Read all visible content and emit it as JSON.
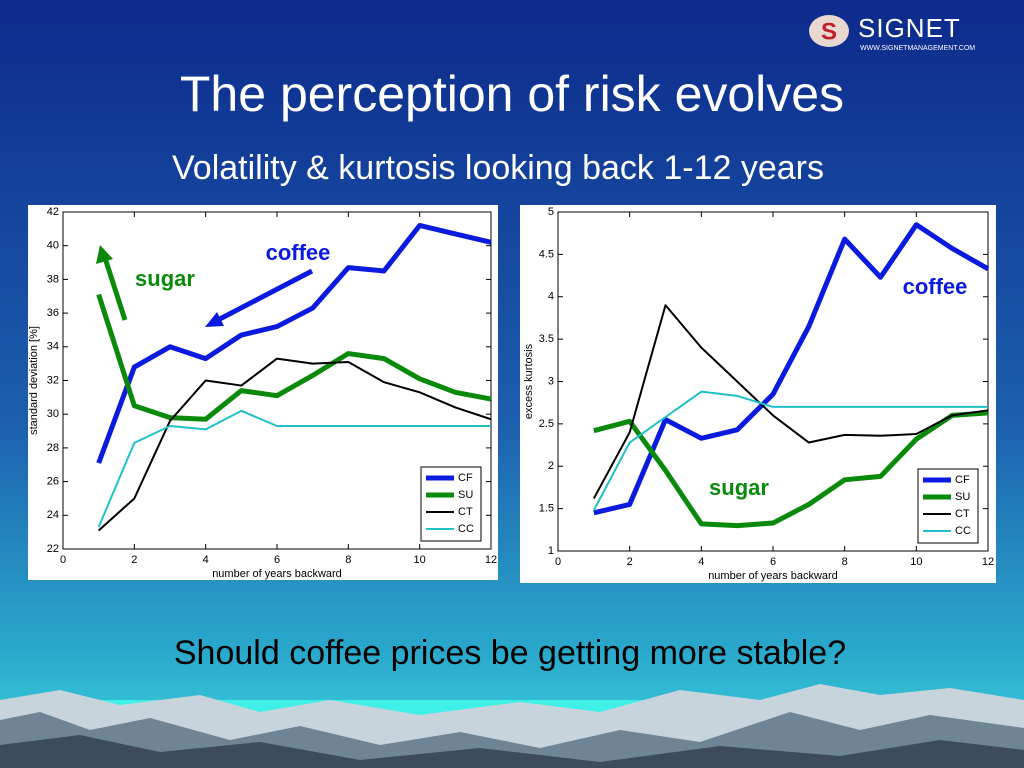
{
  "title": "The perception of risk evolves",
  "subtitle": "Volatility & kurtosis looking back 1-12 years",
  "question": "Should coffee prices be getting more stable?",
  "logo": {
    "name": "SIGNET",
    "url": "WWW.SIGNETMANAGEMENT.COM"
  },
  "chart_data": [
    {
      "type": "line",
      "ylabel": "standard deviation [%]",
      "xlabel": "number of years backward",
      "x": [
        1,
        2,
        3,
        4,
        5,
        6,
        7,
        8,
        9,
        10,
        11,
        12
      ],
      "xlim": [
        0,
        12
      ],
      "xticks": [
        0,
        2,
        4,
        6,
        8,
        10,
        12
      ],
      "ylim": [
        22,
        42
      ],
      "yticks": [
        22,
        24,
        26,
        28,
        30,
        32,
        34,
        36,
        38,
        40,
        42
      ],
      "legend": "lower right",
      "annotations": [
        "coffee",
        "sugar"
      ],
      "series": [
        {
          "name": "CF",
          "color": "#0a1adf",
          "values": [
            27.1,
            32.8,
            34.0,
            33.3,
            34.7,
            35.2,
            36.3,
            38.7,
            38.5,
            41.2,
            40.7,
            40.2
          ]
        },
        {
          "name": "SU",
          "color": "#0a8a0a",
          "values": [
            37.1,
            30.5,
            29.8,
            29.7,
            31.4,
            31.1,
            32.3,
            33.6,
            33.3,
            32.1,
            31.3,
            30.9
          ]
        },
        {
          "name": "CT",
          "color": "#000000",
          "values": [
            23.1,
            25.0,
            29.6,
            32.0,
            31.7,
            33.3,
            33.0,
            33.1,
            31.9,
            31.3,
            30.4,
            29.7
          ]
        },
        {
          "name": "CC",
          "color": "#20c0c8",
          "values": [
            23.3,
            28.3,
            29.3,
            29.1,
            30.2,
            29.3,
            29.3,
            29.3,
            29.3,
            29.3,
            29.3,
            29.3
          ]
        }
      ]
    },
    {
      "type": "line",
      "ylabel": "excess kurtosis",
      "xlabel": "number of years backward",
      "x": [
        1,
        2,
        3,
        4,
        5,
        6,
        7,
        8,
        9,
        10,
        11,
        12
      ],
      "xlim": [
        0,
        12
      ],
      "xticks": [
        0,
        2,
        4,
        6,
        8,
        10,
        12
      ],
      "ylim": [
        1,
        5
      ],
      "yticks": [
        1,
        1.5,
        2,
        2.5,
        3,
        3.5,
        4,
        4.5,
        5
      ],
      "legend": "lower right",
      "annotations": [
        "coffee",
        "sugar"
      ],
      "series": [
        {
          "name": "CF",
          "color": "#0a1adf",
          "values": [
            1.45,
            1.55,
            2.55,
            2.33,
            2.43,
            2.85,
            3.65,
            4.68,
            4.23,
            4.85,
            4.57,
            4.33
          ]
        },
        {
          "name": "SU",
          "color": "#0a8a0a",
          "values": [
            2.42,
            2.53,
            1.95,
            1.32,
            1.3,
            1.33,
            1.55,
            1.84,
            1.88,
            2.32,
            2.6,
            2.63
          ]
        },
        {
          "name": "CT",
          "color": "#000000",
          "values": [
            1.62,
            2.4,
            3.9,
            3.4,
            3.0,
            2.6,
            2.28,
            2.37,
            2.36,
            2.38,
            2.6,
            2.66
          ]
        },
        {
          "name": "CC",
          "color": "#20c0c8",
          "values": [
            1.48,
            2.28,
            2.58,
            2.88,
            2.83,
            2.7,
            2.7,
            2.7,
            2.7,
            2.7,
            2.7,
            2.7
          ]
        }
      ]
    }
  ]
}
